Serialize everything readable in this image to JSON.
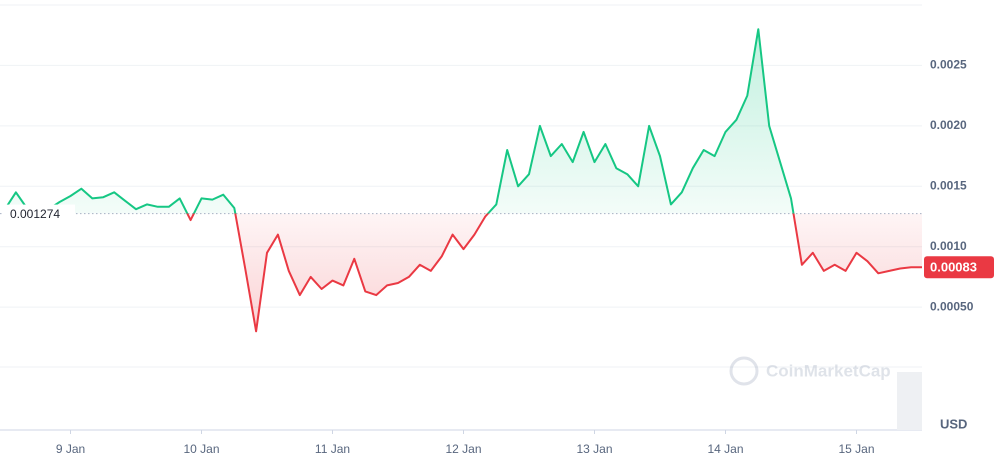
{
  "chart_data": {
    "type": "line",
    "x_ticks_categories": [
      "9 Jan",
      "10 Jan",
      "11 Jan",
      "12 Jan",
      "13 Jan",
      "14 Jan",
      "15 Jan"
    ],
    "xticks": [
      {
        "value": 6,
        "label": "9 Jan"
      },
      {
        "value": 18,
        "label": "10 Jan"
      },
      {
        "value": 30,
        "label": "11 Jan"
      },
      {
        "value": 42,
        "label": "12 Jan"
      },
      {
        "value": 54,
        "label": "13 Jan"
      },
      {
        "value": 66,
        "label": "14 Jan"
      },
      {
        "value": 78,
        "label": "15 Jan"
      }
    ],
    "xlim": [
      0,
      84
    ],
    "ylim": [
      -0.0005,
      0.003
    ],
    "yticks": [
      {
        "value": 0.0005,
        "label": "0.00050"
      },
      {
        "value": 0.001,
        "label": "0.0010"
      },
      0.0015,
      {
        "value": 0.002,
        "label": "0.0020"
      },
      0.0025
    ],
    "grid": true,
    "baseline": 0.001274,
    "current_price": 0.00083,
    "currency": "USD",
    "watermark": "CoinMarketCap",
    "up_color": "#16c784",
    "down_color": "#ea3943",
    "values": [
      0.00131,
      0.00145,
      0.00132,
      0.00133,
      0.00131,
      0.00137,
      0.00142,
      0.00148,
      0.0014,
      0.00141,
      0.00145,
      0.00138,
      0.00131,
      0.00135,
      0.00133,
      0.00133,
      0.0014,
      0.00122,
      0.0014,
      0.00139,
      0.00143,
      0.00132,
      0.00082,
      0.0003,
      0.00095,
      0.0011,
      0.0008,
      0.0006,
      0.00075,
      0.00065,
      0.00072,
      0.00068,
      0.0009,
      0.00063,
      0.0006,
      0.00068,
      0.0007,
      0.00075,
      0.00085,
      0.0008,
      0.00092,
      0.0011,
      0.00098,
      0.0011,
      0.00125,
      0.00135,
      0.0018,
      0.0015,
      0.0016,
      0.002,
      0.00175,
      0.00185,
      0.0017,
      0.00195,
      0.0017,
      0.00185,
      0.00165,
      0.0016,
      0.0015,
      0.002,
      0.00175,
      0.00135,
      0.00145,
      0.00165,
      0.0018,
      0.00175,
      0.00195,
      0.00205,
      0.00225,
      0.0028,
      0.002,
      0.0017,
      0.0014,
      0.00085,
      0.00095,
      0.0008,
      0.00085,
      0.0008,
      0.00095,
      0.00088,
      0.00078,
      0.0008,
      0.00082,
      0.00083,
      0.00083
    ]
  }
}
